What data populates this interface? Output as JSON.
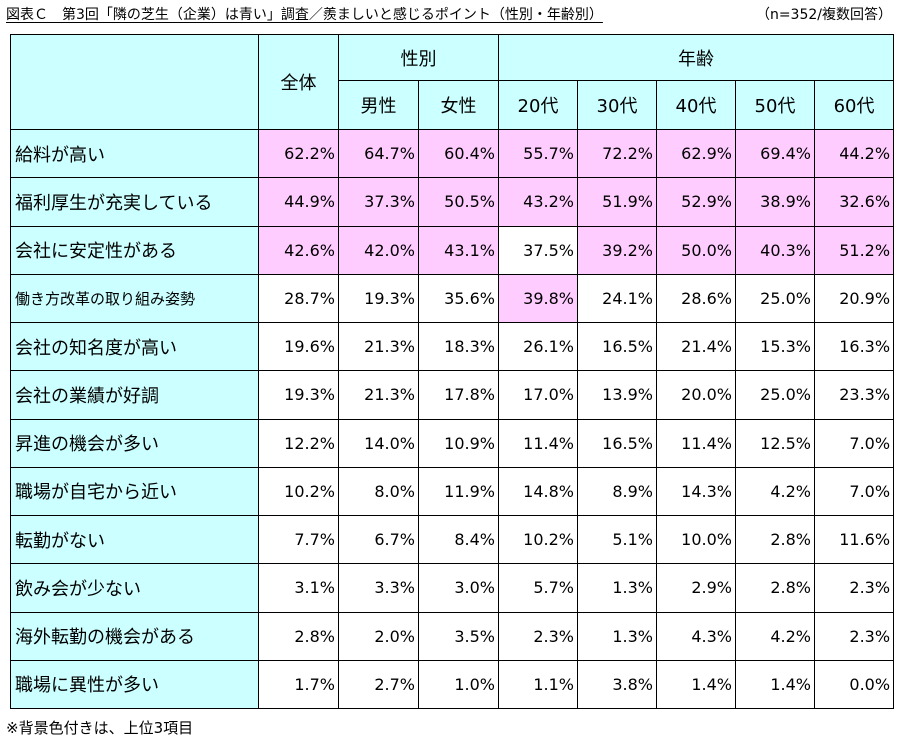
{
  "title": "図表Ｃ　第3回「隣の芝生（企業）は青い」調査／羨ましいと感じるポイント（性別・年齢別）",
  "sample": "（n=352/複数回答）",
  "header": {
    "total": "全体",
    "gender_group": "性別",
    "age_group": "年齢",
    "gender": [
      "男性",
      "女性"
    ],
    "age": [
      "20代",
      "30代",
      "40代",
      "50代",
      "60代"
    ]
  },
  "rows": [
    {
      "label": "給料が高い",
      "values": [
        "62.2%",
        "64.7%",
        "60.4%",
        "55.7%",
        "72.2%",
        "62.9%",
        "69.4%",
        "44.2%"
      ],
      "top3": [
        true,
        true,
        true,
        true,
        true,
        true,
        true,
        true
      ]
    },
    {
      "label": "福利厚生が充実している",
      "values": [
        "44.9%",
        "37.3%",
        "50.5%",
        "43.2%",
        "51.9%",
        "52.9%",
        "38.9%",
        "32.6%"
      ],
      "top3": [
        true,
        true,
        true,
        true,
        true,
        true,
        true,
        true
      ]
    },
    {
      "label": "会社に安定性がある",
      "values": [
        "42.6%",
        "42.0%",
        "43.1%",
        "37.5%",
        "39.2%",
        "50.0%",
        "40.3%",
        "51.2%"
      ],
      "top3": [
        true,
        true,
        true,
        false,
        true,
        true,
        true,
        true
      ]
    },
    {
      "label": "働き方改革の取り組み姿勢",
      "values": [
        "28.7%",
        "19.3%",
        "35.6%",
        "39.8%",
        "24.1%",
        "28.6%",
        "25.0%",
        "20.9%"
      ],
      "top3": [
        false,
        false,
        false,
        true,
        false,
        false,
        false,
        false
      ]
    },
    {
      "label": "会社の知名度が高い",
      "values": [
        "19.6%",
        "21.3%",
        "18.3%",
        "26.1%",
        "16.5%",
        "21.4%",
        "15.3%",
        "16.3%"
      ],
      "top3": [
        false,
        false,
        false,
        false,
        false,
        false,
        false,
        false
      ]
    },
    {
      "label": "会社の業績が好調",
      "values": [
        "19.3%",
        "21.3%",
        "17.8%",
        "17.0%",
        "13.9%",
        "20.0%",
        "25.0%",
        "23.3%"
      ],
      "top3": [
        false,
        false,
        false,
        false,
        false,
        false,
        false,
        false
      ]
    },
    {
      "label": "昇進の機会が多い",
      "values": [
        "12.2%",
        "14.0%",
        "10.9%",
        "11.4%",
        "16.5%",
        "11.4%",
        "12.5%",
        "7.0%"
      ],
      "top3": [
        false,
        false,
        false,
        false,
        false,
        false,
        false,
        false
      ]
    },
    {
      "label": "職場が自宅から近い",
      "values": [
        "10.2%",
        "8.0%",
        "11.9%",
        "14.8%",
        "8.9%",
        "14.3%",
        "4.2%",
        "7.0%"
      ],
      "top3": [
        false,
        false,
        false,
        false,
        false,
        false,
        false,
        false
      ]
    },
    {
      "label": "転勤がない",
      "values": [
        "7.7%",
        "6.7%",
        "8.4%",
        "10.2%",
        "5.1%",
        "10.0%",
        "2.8%",
        "11.6%"
      ],
      "top3": [
        false,
        false,
        false,
        false,
        false,
        false,
        false,
        false
      ]
    },
    {
      "label": "飲み会が少ない",
      "values": [
        "3.1%",
        "3.3%",
        "3.0%",
        "5.7%",
        "1.3%",
        "2.9%",
        "2.8%",
        "2.3%"
      ],
      "top3": [
        false,
        false,
        false,
        false,
        false,
        false,
        false,
        false
      ]
    },
    {
      "label": "海外転勤の機会がある",
      "values": [
        "2.8%",
        "2.0%",
        "3.5%",
        "2.3%",
        "1.3%",
        "4.3%",
        "4.2%",
        "2.3%"
      ],
      "top3": [
        false,
        false,
        false,
        false,
        false,
        false,
        false,
        false
      ]
    },
    {
      "label": "職場に異性が多い",
      "values": [
        "1.7%",
        "2.7%",
        "1.0%",
        "1.1%",
        "3.8%",
        "1.4%",
        "1.4%",
        "0.0%"
      ],
      "top3": [
        false,
        false,
        false,
        false,
        false,
        false,
        false,
        false
      ]
    }
  ],
  "footnote": "※背景色付きは、上位3項目",
  "colors": {
    "header_bg": "#ccffff",
    "highlight_bg": "#ffccff"
  }
}
